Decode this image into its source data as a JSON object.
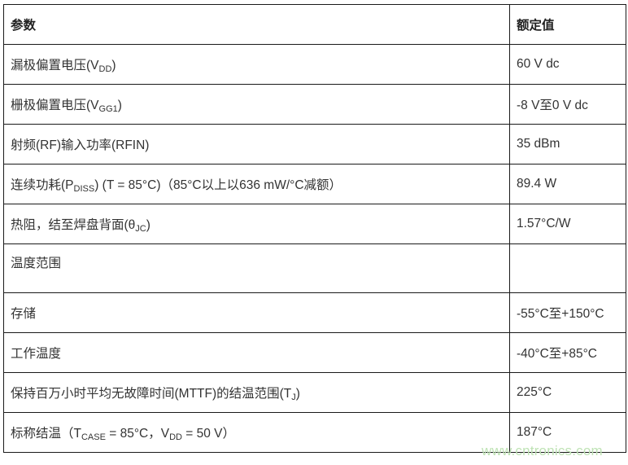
{
  "header": {
    "param": "参数",
    "rating": "额定值"
  },
  "rows": [
    {
      "pre": "漏极偏置电压(V",
      "sub": "DD",
      "post": ")",
      "value": "60 V dc"
    },
    {
      "pre": "栅极偏置电压(V",
      "sub": "GG1",
      "post": ")",
      "value": "-8 V至0 V dc"
    },
    {
      "pre": "射频(RF)输入功率(RFIN)",
      "sub": "",
      "post": "",
      "value": "35 dBm"
    },
    {
      "pre": "连续功耗(P",
      "sub": "DISS",
      "post": ") (T = 85°C)（85°C以上以636 mW/°C减额）",
      "value": "89.4 W"
    },
    {
      "pre": "热阻，结至焊盘背面(θ",
      "sub": "JC",
      "post": ")",
      "value": "1.57°C/W"
    },
    {
      "pre": "温度范围",
      "sub": "",
      "post": "",
      "value": ""
    },
    {
      "pre": "存储",
      "sub": "",
      "post": "",
      "value": "-55°C至+150°C"
    },
    {
      "pre": "工作温度",
      "sub": "",
      "post": "",
      "value": "-40°C至+85°C"
    },
    {
      "pre": "保持百万小时平均无故障时间(MTTF)的结温范围(T",
      "sub": "J",
      "post": ")",
      "value": "225°C"
    }
  ],
  "last_row": {
    "pre": "标称结温（T",
    "sub1": "CASE",
    "mid": " = 85°C，V",
    "sub2": "DD",
    "post": " = 50 V）",
    "value": "187°C"
  },
  "watermark": "www.cntronics.com"
}
